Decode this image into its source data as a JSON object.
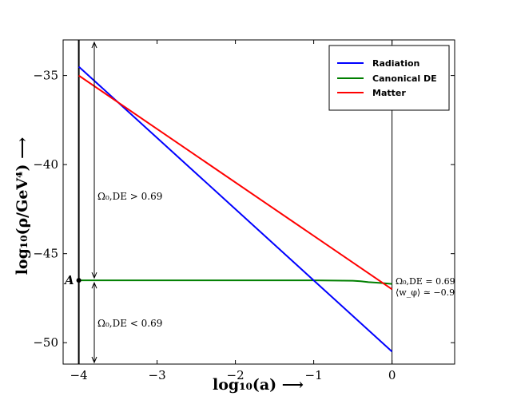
{
  "chart_data": {
    "type": "line",
    "xlabel": "log₁₀(a) ⟶",
    "ylabel": "log₁₀(ρ/GeV⁴) ⟶",
    "xlim": [
      -4.2,
      0.8
    ],
    "ylim": [
      -51.2,
      -33
    ],
    "xticks": [
      -4,
      -3,
      -2,
      -1,
      0
    ],
    "yticks": [
      -35,
      -40,
      -45,
      -50
    ],
    "xtick_labels": [
      "−4",
      "−3",
      "−2",
      "−1",
      "0"
    ],
    "ytick_labels": [
      "−35",
      "−40",
      "−45",
      "−50"
    ],
    "grid": false,
    "legend_position": "top-right",
    "series": [
      {
        "name": "Radiation",
        "color": "#0000ff",
        "x": [
          -4,
          0
        ],
        "y": [
          -34.5,
          -50.5
        ]
      },
      {
        "name": "Canonical DE",
        "color": "#007f00",
        "x": [
          -4,
          -3,
          -2,
          -1,
          -0.5,
          -0.4,
          -0.3,
          -0.2,
          -0.1,
          0
        ],
        "y": [
          -46.5,
          -46.5,
          -46.5,
          -46.5,
          -46.52,
          -46.55,
          -46.6,
          -46.63,
          -46.66,
          -46.7
        ]
      },
      {
        "name": "Matter",
        "color": "#ff0000",
        "x": [
          -4,
          0
        ],
        "y": [
          -35,
          -47
        ]
      }
    ],
    "annotations": {
      "point_label": "A",
      "point": {
        "x": -4,
        "y": -46.5
      },
      "upper_region": "Ω₀,DE  >  0.69",
      "lower_region": "Ω₀,DE  <  0.69",
      "right_line1": "Ω₀,DE = 0.69",
      "right_line2": "⟨w_φ⟩ ≃ −0.9"
    }
  }
}
